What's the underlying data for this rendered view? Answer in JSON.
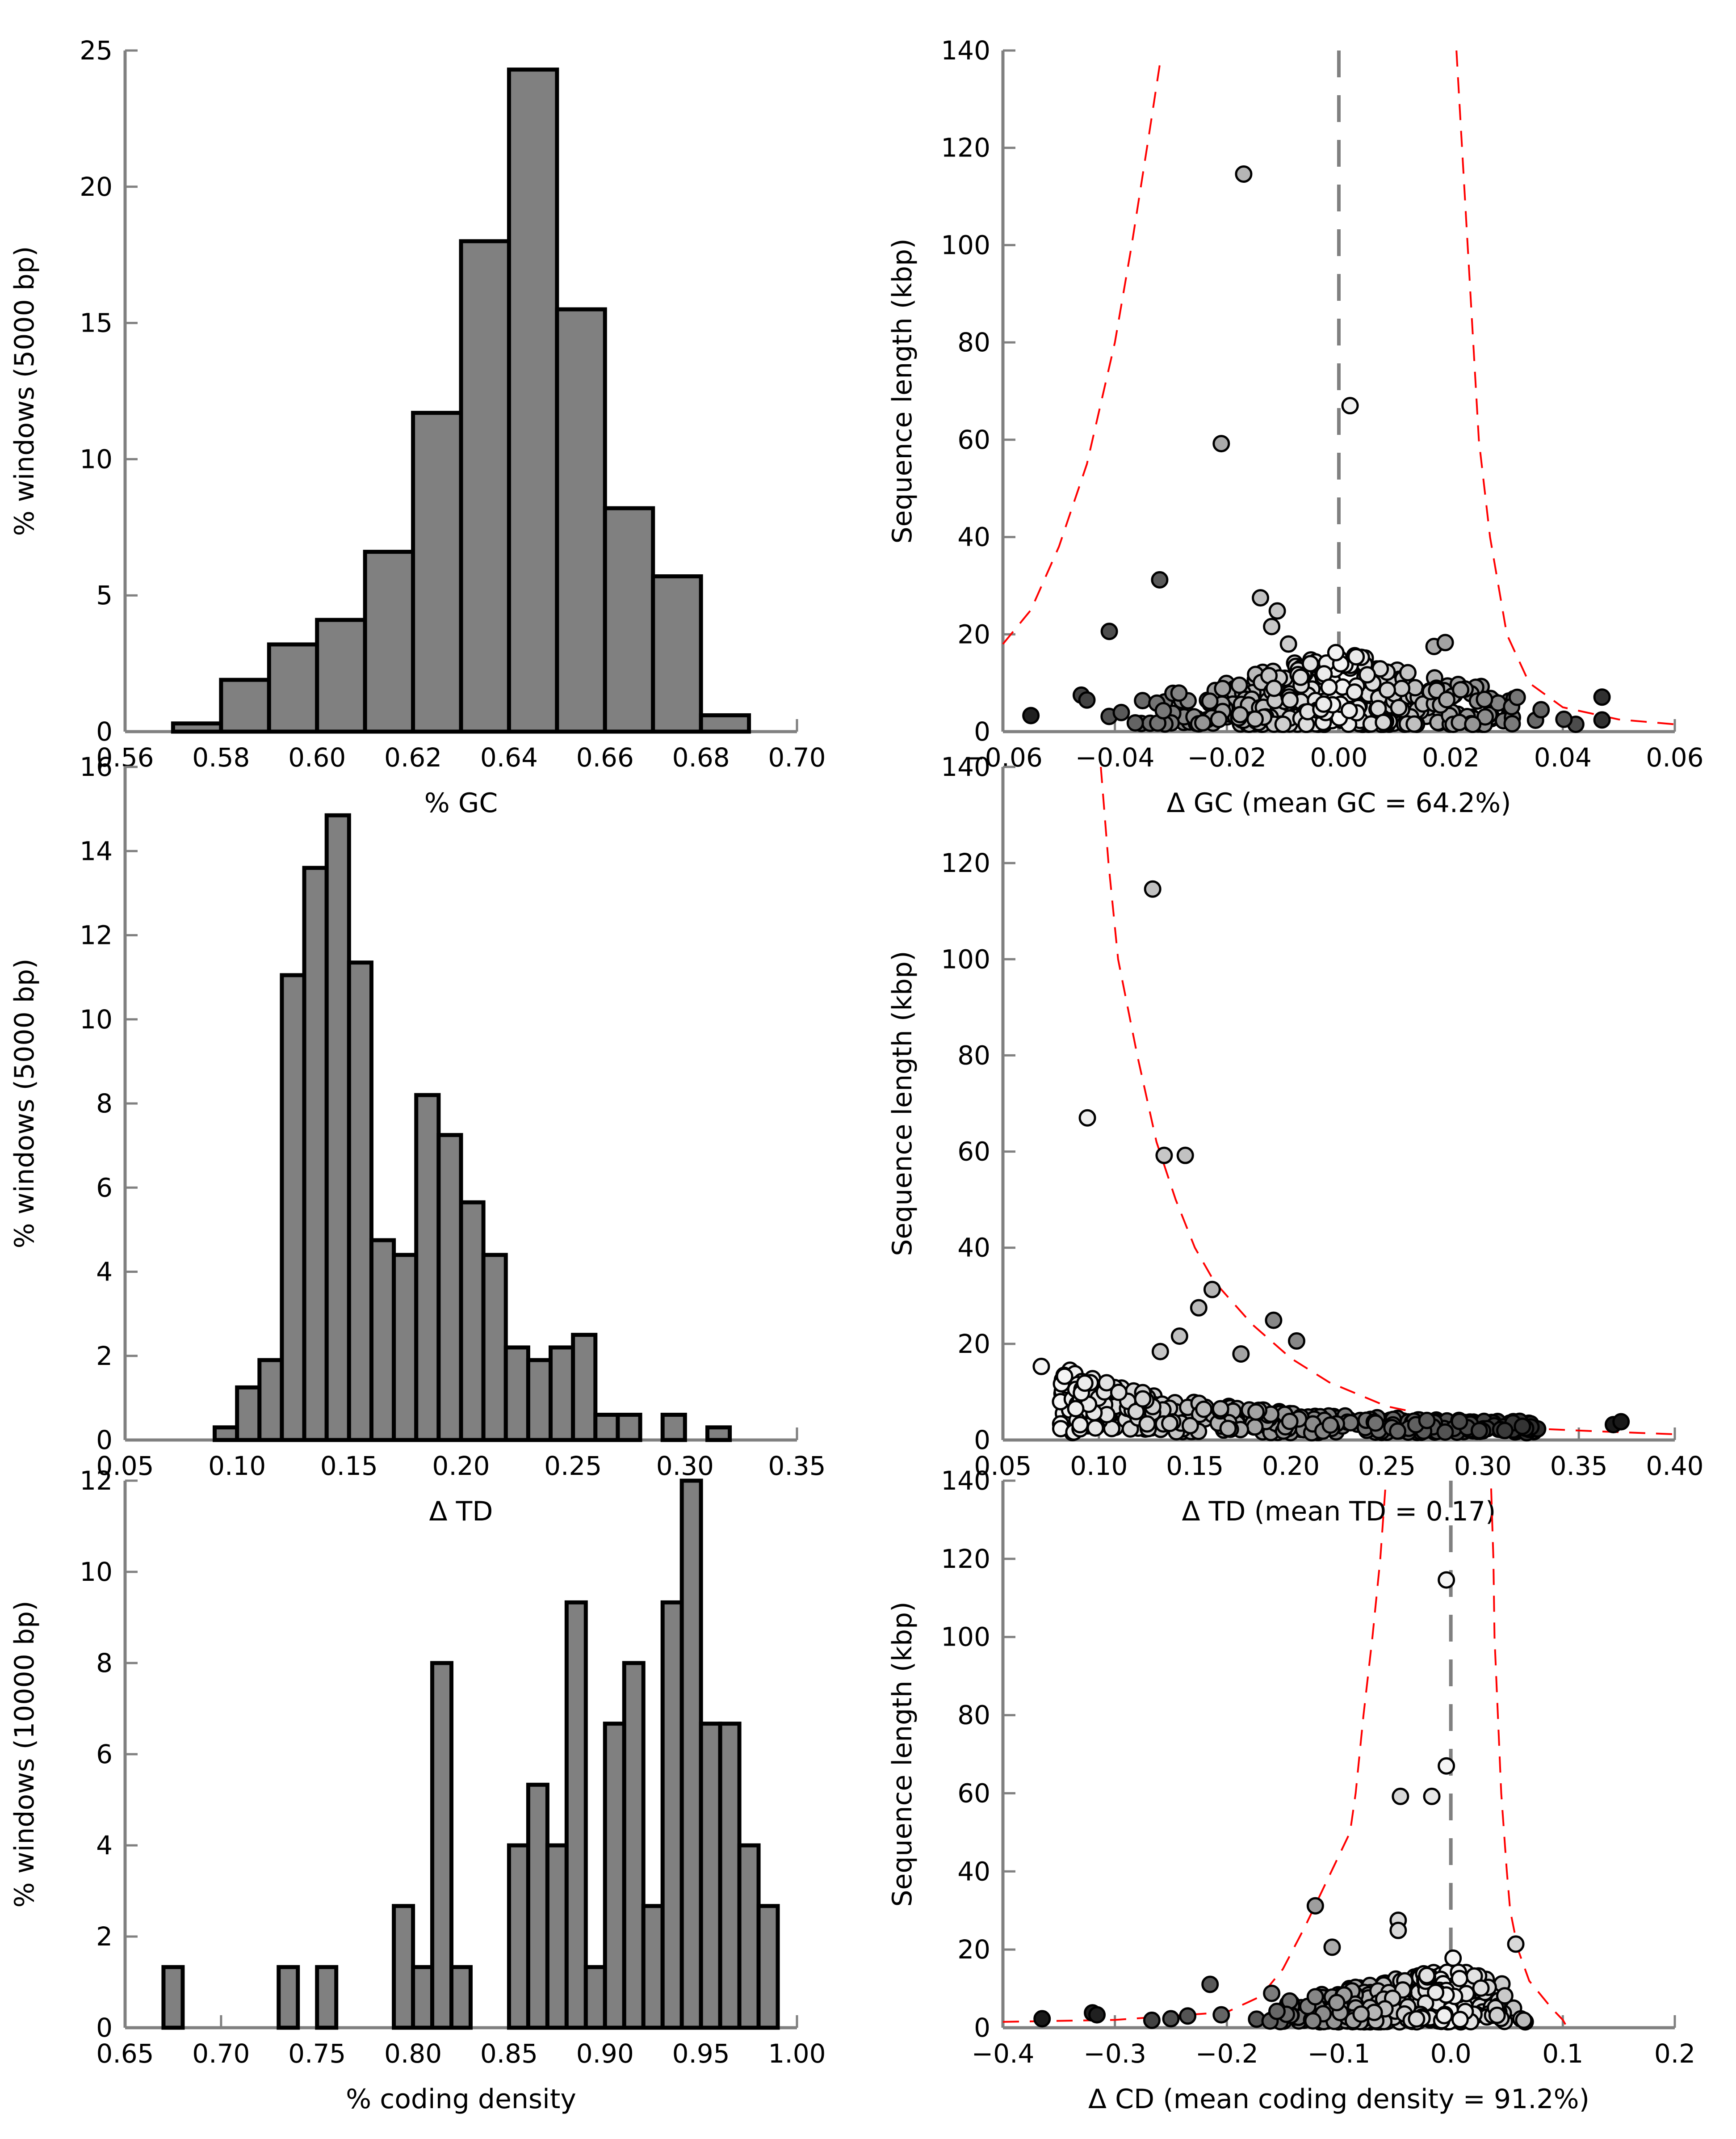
{
  "chart_data": [
    {
      "id": "gc-hist",
      "type": "bar",
      "xlabel": "% GC",
      "ylabel": "% windows (5000 bp)",
      "xlim": [
        0.56,
        0.7
      ],
      "ylim": [
        0,
        25
      ],
      "xticks": [
        0.56,
        0.58,
        0.6,
        0.62,
        0.64,
        0.66,
        0.68,
        0.7
      ],
      "xtick_labels": [
        "0.56",
        "0.58",
        "0.60",
        "0.62",
        "0.64",
        "0.66",
        "0.68",
        "0.70"
      ],
      "yticks": [
        0,
        5,
        10,
        15,
        20,
        25
      ],
      "ytick_labels": [
        "0",
        "5",
        "10",
        "15",
        "20",
        "25"
      ],
      "bin_width": 0.01,
      "bin_starts": [
        0.57,
        0.58,
        0.59,
        0.6,
        0.61,
        0.62,
        0.63,
        0.64,
        0.65,
        0.66,
        0.67,
        0.68
      ],
      "values": [
        0.3,
        1.9,
        3.2,
        4.1,
        6.6,
        11.7,
        18.0,
        24.3,
        15.5,
        8.2,
        5.7,
        0.6
      ],
      "bar_color": "#808080",
      "grid": false
    },
    {
      "id": "gc-scatter",
      "type": "scatter",
      "xlabel": "Δ GC (mean GC = 64.2%)",
      "ylabel": "Sequence length (kbp)",
      "xlim": [
        -0.06,
        0.06
      ],
      "ylim": [
        0,
        140
      ],
      "xticks": [
        -0.06,
        -0.04,
        -0.02,
        0.0,
        0.02,
        0.04,
        0.06
      ],
      "xtick_labels": [
        "−0.06",
        "−0.04",
        "−0.02",
        "0.00",
        "0.02",
        "0.04",
        "0.06"
      ],
      "yticks": [
        0,
        20,
        40,
        60,
        80,
        100,
        120,
        140
      ],
      "ytick_labels": [
        "0",
        "20",
        "40",
        "60",
        "80",
        "100",
        "120",
        "140"
      ],
      "center_line": 0.0,
      "bound_color": "#ff0000",
      "bound_curves": {
        "left": [
          [
            -0.06,
            18
          ],
          [
            -0.055,
            25
          ],
          [
            -0.05,
            38
          ],
          [
            -0.045,
            55
          ],
          [
            -0.04,
            80
          ],
          [
            -0.037,
            100
          ],
          [
            -0.034,
            122
          ],
          [
            -0.032,
            137
          ]
        ],
        "right": [
          [
            0.021,
            140
          ],
          [
            0.022,
            120
          ],
          [
            0.023,
            100
          ],
          [
            0.024,
            80
          ],
          [
            0.025,
            60
          ],
          [
            0.027,
            40
          ],
          [
            0.03,
            20
          ],
          [
            0.034,
            10
          ],
          [
            0.04,
            5
          ],
          [
            0.05,
            2.5
          ],
          [
            0.06,
            1.5
          ]
        ]
      },
      "outliers": [
        {
          "x": -0.017,
          "y": 114.6,
          "shade": 0.7
        },
        {
          "x": 0.002,
          "y": 67.0,
          "shade": 0.97
        },
        {
          "x": -0.021,
          "y": 59.2,
          "shade": 0.65
        },
        {
          "x": -0.032,
          "y": 31.2,
          "shade": 0.3
        },
        {
          "x": -0.014,
          "y": 27.5,
          "shade": 0.75
        },
        {
          "x": -0.011,
          "y": 24.8,
          "shade": 0.78
        },
        {
          "x": -0.012,
          "y": 21.6,
          "shade": 0.78
        },
        {
          "x": -0.041,
          "y": 20.6,
          "shade": 0.25
        },
        {
          "x": -0.009,
          "y": 18.0,
          "shade": 0.8
        },
        {
          "x": 0.017,
          "y": 17.5,
          "shade": 0.65
        },
        {
          "x": 0.019,
          "y": 18.3,
          "shade": 0.62
        },
        {
          "x": -0.055,
          "y": 3.3,
          "shade": 0.05
        },
        {
          "x": -0.046,
          "y": 7.5,
          "shade": 0.2
        },
        {
          "x": -0.045,
          "y": 6.5,
          "shade": 0.2
        },
        {
          "x": 0.047,
          "y": 7.1,
          "shade": 0.12
        },
        {
          "x": 0.047,
          "y": 2.4,
          "shade": 0.12
        }
      ],
      "cluster": {
        "x_range": [
          -0.046,
          0.046
        ],
        "y_range": [
          1.5,
          15
        ],
        "count": 420,
        "shade_by_abs_x": true
      }
    },
    {
      "id": "td-hist",
      "type": "bar",
      "xlabel": "Δ TD",
      "ylabel": "% windows (5000 bp)",
      "xlim": [
        0.05,
        0.35
      ],
      "ylim": [
        0,
        16
      ],
      "xticks": [
        0.05,
        0.1,
        0.15,
        0.2,
        0.25,
        0.3,
        0.35
      ],
      "xtick_labels": [
        "0.05",
        "0.10",
        "0.15",
        "0.20",
        "0.25",
        "0.30",
        "0.35"
      ],
      "yticks": [
        0,
        2,
        4,
        6,
        8,
        10,
        12,
        14,
        16
      ],
      "ytick_labels": [
        "0",
        "2",
        "4",
        "6",
        "8",
        "10",
        "12",
        "14",
        "16"
      ],
      "bin_width": 0.01,
      "bin_starts": [
        0.09,
        0.1,
        0.11,
        0.12,
        0.13,
        0.14,
        0.15,
        0.16,
        0.17,
        0.18,
        0.19,
        0.2,
        0.21,
        0.22,
        0.23,
        0.24,
        0.25,
        0.26,
        0.27,
        0.28,
        0.29,
        0.3,
        0.31
      ],
      "values": [
        0.3,
        1.25,
        1.9,
        11.05,
        13.6,
        14.85,
        11.35,
        4.75,
        4.4,
        8.2,
        7.25,
        5.65,
        4.4,
        2.2,
        1.9,
        2.2,
        2.5,
        0.6,
        0.6,
        0,
        0.6,
        0,
        0.3
      ],
      "bar_color": "#808080",
      "grid": false
    },
    {
      "id": "td-scatter",
      "type": "scatter",
      "xlabel": "Δ TD (mean TD = 0.17)",
      "ylabel": "Sequence length (kbp)",
      "xlim": [
        0.05,
        0.4
      ],
      "ylim": [
        0,
        140
      ],
      "xticks": [
        0.05,
        0.1,
        0.15,
        0.2,
        0.25,
        0.3,
        0.35,
        0.4
      ],
      "xtick_labels": [
        "0.05",
        "0.10",
        "0.15",
        "0.20",
        "0.25",
        "0.30",
        "0.35",
        "0.40"
      ],
      "yticks": [
        0,
        20,
        40,
        60,
        80,
        100,
        120,
        140
      ],
      "ytick_labels": [
        "0",
        "20",
        "40",
        "60",
        "80",
        "100",
        "120",
        "140"
      ],
      "center_line": null,
      "bound_color": "#ff0000",
      "bound_curves": {
        "right": [
          [
            0.101,
            140
          ],
          [
            0.105,
            120
          ],
          [
            0.11,
            100
          ],
          [
            0.12,
            80
          ],
          [
            0.13,
            62
          ],
          [
            0.14,
            50
          ],
          [
            0.15,
            40
          ],
          [
            0.16,
            33
          ],
          [
            0.18,
            24
          ],
          [
            0.2,
            17
          ],
          [
            0.22,
            12
          ],
          [
            0.25,
            7
          ],
          [
            0.28,
            4.5
          ],
          [
            0.32,
            2.5
          ],
          [
            0.36,
            1.8
          ],
          [
            0.4,
            1.2
          ]
        ]
      },
      "outliers": [
        {
          "x": 0.128,
          "y": 114.6,
          "shade": 0.75
        },
        {
          "x": 0.094,
          "y": 67.0,
          "shade": 0.95
        },
        {
          "x": 0.134,
          "y": 59.2,
          "shade": 0.78
        },
        {
          "x": 0.145,
          "y": 59.2,
          "shade": 0.75
        },
        {
          "x": 0.159,
          "y": 31.3,
          "shade": 0.7
        },
        {
          "x": 0.152,
          "y": 27.5,
          "shade": 0.72
        },
        {
          "x": 0.191,
          "y": 24.9,
          "shade": 0.5
        },
        {
          "x": 0.203,
          "y": 20.6,
          "shade": 0.5
        },
        {
          "x": 0.142,
          "y": 21.6,
          "shade": 0.75
        },
        {
          "x": 0.132,
          "y": 18.4,
          "shade": 0.78
        },
        {
          "x": 0.174,
          "y": 17.9,
          "shade": 0.62
        },
        {
          "x": 0.07,
          "y": 15.3,
          "shade": 0.98
        },
        {
          "x": 0.368,
          "y": 3.2,
          "shade": 0.02
        },
        {
          "x": 0.372,
          "y": 3.8,
          "shade": 0.02
        }
      ],
      "cluster": {
        "x_range": [
          0.08,
          0.33
        ],
        "y_range": [
          1.5,
          14
        ],
        "count": 420,
        "shade_by_x": true,
        "decay": true
      }
    },
    {
      "id": "cd-hist",
      "type": "bar",
      "xlabel": "% coding density",
      "ylabel": "% windows (10000 bp)",
      "xlim": [
        0.65,
        1.0
      ],
      "ylim": [
        0,
        12
      ],
      "xticks": [
        0.65,
        0.7,
        0.75,
        0.8,
        0.85,
        0.9,
        0.95,
        1.0
      ],
      "xtick_labels": [
        "0.65",
        "0.70",
        "0.75",
        "0.80",
        "0.85",
        "0.90",
        "0.95",
        "1.00"
      ],
      "yticks": [
        0,
        2,
        4,
        6,
        8,
        10,
        12
      ],
      "ytick_labels": [
        "0",
        "2",
        "4",
        "6",
        "8",
        "10",
        "12"
      ],
      "bin_width": 0.01,
      "bin_starts": [
        0.67,
        0.73,
        0.75,
        0.79,
        0.8,
        0.81,
        0.82,
        0.85,
        0.86,
        0.87,
        0.88,
        0.89,
        0.9,
        0.91,
        0.92,
        0.93,
        0.94,
        0.95,
        0.96,
        0.97,
        0.98
      ],
      "values": [
        1.33,
        1.33,
        1.33,
        2.67,
        1.33,
        8.0,
        1.33,
        4.0,
        5.33,
        4.0,
        9.33,
        1.33,
        6.67,
        8.0,
        2.67,
        9.33,
        12.0,
        6.67,
        6.67,
        4.0,
        2.67
      ],
      "bar_color": "#808080",
      "grid": false
    },
    {
      "id": "cd-scatter",
      "type": "scatter",
      "xlabel": "Δ CD (mean coding density = 91.2%)",
      "ylabel": "Sequence length (kbp)",
      "xlim": [
        -0.4,
        0.2
      ],
      "ylim": [
        0,
        140
      ],
      "xticks": [
        -0.4,
        -0.3,
        -0.2,
        -0.1,
        0.0,
        0.1,
        0.2
      ],
      "xtick_labels": [
        "−0.4",
        "−0.3",
        "−0.2",
        "−0.1",
        "0.0",
        "0.1",
        "0.2"
      ],
      "yticks": [
        0,
        20,
        40,
        60,
        80,
        100,
        120,
        140
      ],
      "ytick_labels": [
        "0",
        "20",
        "40",
        "60",
        "80",
        "100",
        "120",
        "140"
      ],
      "center_line": 0.0,
      "bound_color": "#ff0000",
      "bound_curves": {
        "left": [
          [
            -0.4,
            1.5
          ],
          [
            -0.3,
            2
          ],
          [
            -0.2,
            4
          ],
          [
            -0.17,
            8
          ],
          [
            -0.15,
            15
          ],
          [
            -0.13,
            26
          ],
          [
            -0.11,
            38
          ],
          [
            -0.09,
            50
          ],
          [
            -0.085,
            60
          ],
          [
            -0.078,
            80
          ],
          [
            -0.07,
            100
          ],
          [
            -0.063,
            120
          ],
          [
            -0.058,
            140
          ]
        ],
        "right": [
          [
            0.036,
            138
          ],
          [
            0.038,
            120
          ],
          [
            0.039,
            100
          ],
          [
            0.042,
            80
          ],
          [
            0.045,
            60
          ],
          [
            0.05,
            40
          ],
          [
            0.053,
            30
          ],
          [
            0.06,
            20
          ],
          [
            0.07,
            12
          ],
          [
            0.09,
            5
          ],
          [
            0.1,
            2
          ],
          [
            0.104,
            0
          ]
        ]
      },
      "outliers": [
        {
          "x": -0.004,
          "y": 114.6,
          "shade": 0.98
        },
        {
          "x": -0.004,
          "y": 67.0,
          "shade": 0.98
        },
        {
          "x": -0.045,
          "y": 59.2,
          "shade": 0.85
        },
        {
          "x": -0.017,
          "y": 59.2,
          "shade": 0.92
        },
        {
          "x": -0.121,
          "y": 31.2,
          "shade": 0.6
        },
        {
          "x": -0.047,
          "y": 27.5,
          "shade": 0.85
        },
        {
          "x": -0.047,
          "y": 24.9,
          "shade": 0.85
        },
        {
          "x": -0.106,
          "y": 20.6,
          "shade": 0.65
        },
        {
          "x": 0.058,
          "y": 21.4,
          "shade": 0.85
        },
        {
          "x": 0.002,
          "y": 17.8,
          "shade": 0.98
        },
        {
          "x": -0.215,
          "y": 11.1,
          "shade": 0.3
        },
        {
          "x": -0.16,
          "y": 8.8,
          "shade": 0.45
        },
        {
          "x": -0.365,
          "y": 2.3,
          "shade": 0.02
        },
        {
          "x": -0.32,
          "y": 3.8,
          "shade": 0.05
        },
        {
          "x": -0.316,
          "y": 3.3,
          "shade": 0.05
        },
        {
          "x": -0.267,
          "y": 1.9,
          "shade": 0.2
        },
        {
          "x": -0.25,
          "y": 2.3,
          "shade": 0.25
        },
        {
          "x": -0.235,
          "y": 3.0,
          "shade": 0.28
        },
        {
          "x": -0.205,
          "y": 3.3,
          "shade": 0.35
        }
      ],
      "cluster": {
        "x_range": [
          -0.2,
          0.09
        ],
        "y_range": [
          1.5,
          14
        ],
        "count": 420,
        "shade_by_abs_x": true
      }
    }
  ]
}
